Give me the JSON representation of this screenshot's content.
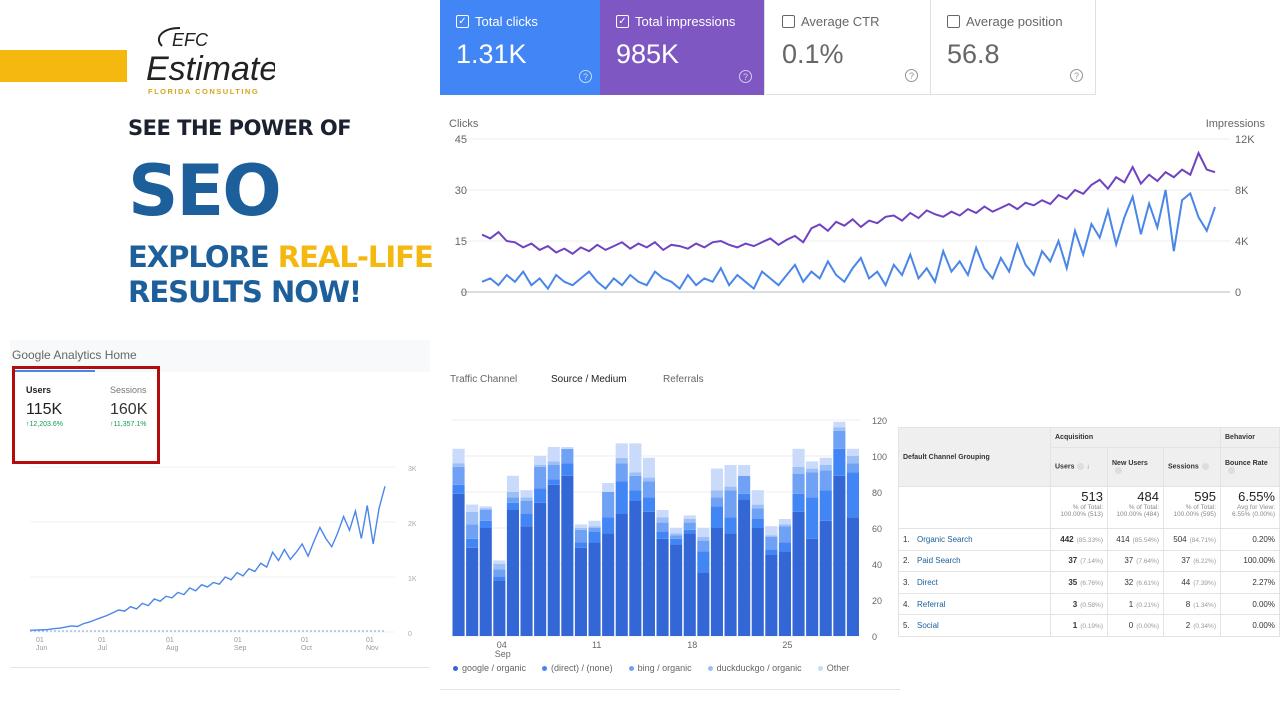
{
  "brand": {
    "logo_initials": "EFC",
    "logo_name": "Estimate",
    "logo_tagline": "FLORIDA CONSULTING",
    "accent_yellow": "#f5b80f",
    "accent_blue": "#1d5f9b"
  },
  "headline": {
    "line1": "SEE THE POWER OF",
    "line2": "SEO",
    "line3a": "EXPLORE ",
    "line3b": "REAL-LIFE",
    "line4": "RESULTS NOW!"
  },
  "search_console": {
    "cards": [
      {
        "label": "Total clicks",
        "value": "1.31K",
        "checked": true,
        "color": "#4285f4"
      },
      {
        "label": "Total impressions",
        "value": "985K",
        "checked": true,
        "color": "#7e57c2"
      },
      {
        "label": "Average CTR",
        "value": "0.1%",
        "checked": false
      },
      {
        "label": "Average position",
        "value": "56.8",
        "checked": false
      }
    ]
  },
  "ga_home": {
    "title": "Google Analytics Home",
    "metrics": [
      {
        "label": "Users",
        "value": "115K",
        "change": "12,203.6%"
      },
      {
        "label": "Sessions",
        "value": "160K",
        "change": "11,357.1%"
      }
    ]
  },
  "source_tabs": [
    "Traffic Channel",
    "Source / Medium",
    "Referrals"
  ],
  "active_source_tab": "Source / Medium",
  "chart_data": [
    {
      "type": "line",
      "ylabel_left": "Clicks",
      "ylabel_right": "Impressions",
      "y_left_ticks": [
        "45",
        "30",
        "15",
        "0"
      ],
      "y_right_ticks": [
        "12K",
        "8K",
        "4K",
        "0"
      ],
      "ylim_left": [
        0,
        45
      ],
      "ylim_right": [
        0,
        12000
      ],
      "series": [
        {
          "name": "Clicks",
          "color": "#4a86e8",
          "values": [
            3,
            4,
            2,
            5,
            3,
            6,
            2,
            4,
            1,
            5,
            3,
            2,
            4,
            6,
            3,
            1,
            4,
            2,
            5,
            3,
            2,
            6,
            4,
            3,
            1,
            5,
            2,
            4,
            3,
            7,
            2,
            5,
            3,
            1,
            6,
            4,
            2,
            5,
            8,
            3,
            6,
            4,
            9,
            5,
            3,
            7,
            10,
            4,
            6,
            2,
            8,
            5,
            11,
            4,
            7,
            3,
            12,
            6,
            9,
            5,
            13,
            7,
            4,
            10,
            6,
            14,
            8,
            5,
            12,
            9,
            15,
            7,
            18,
            11,
            20,
            16,
            24,
            14,
            22,
            28,
            17,
            26,
            19,
            30,
            12,
            27,
            29,
            22,
            18,
            25
          ]
        },
        {
          "name": "Impressions",
          "color": "#6f42c1",
          "values": [
            4500,
            4200,
            4700,
            4000,
            3900,
            3500,
            3800,
            3300,
            3600,
            3100,
            3400,
            3000,
            3500,
            3200,
            3700,
            3300,
            3600,
            3900,
            3400,
            3800,
            3500,
            3900,
            3300,
            3700,
            3600,
            3400,
            3800,
            3500,
            3900,
            4000,
            3700,
            3500,
            3800,
            3600,
            3900,
            4200,
            3700,
            4100,
            4400,
            3900,
            5000,
            5300,
            4800,
            5500,
            5200,
            5700,
            5100,
            5600,
            5400,
            5900,
            6000,
            5600,
            6200,
            5800,
            6400,
            6100,
            5900,
            6300,
            6000,
            6500,
            6200,
            6700,
            6300,
            6600,
            6900,
            6500,
            7000,
            6800,
            7200,
            6900,
            7600,
            7300,
            8000,
            7700,
            8400,
            8800,
            8100,
            9000,
            8600,
            9800,
            8500,
            9200,
            8700,
            9400,
            9000,
            9600,
            9200,
            10900,
            9600,
            9400
          ]
        }
      ]
    },
    {
      "type": "line",
      "title": "Users",
      "y_ticks": [
        "3K",
        "2K",
        "1K",
        "0"
      ],
      "ylim": [
        0,
        3000
      ],
      "x_ticks": [
        [
          "01",
          "Jun"
        ],
        [
          "01",
          "Jul"
        ],
        [
          "01",
          "Aug"
        ],
        [
          "01",
          "Sep"
        ],
        [
          "01",
          "Oct"
        ],
        [
          "01",
          "Nov"
        ]
      ],
      "series": [
        {
          "name": "Users",
          "color": "#4a86e8",
          "values": [
            30,
            35,
            40,
            45,
            60,
            70,
            90,
            110,
            100,
            150,
            180,
            220,
            260,
            300,
            350,
            400,
            380,
            460,
            420,
            520,
            480,
            600,
            560,
            650,
            620,
            720,
            680,
            800,
            750,
            860,
            820,
            900,
            870,
            1000,
            950,
            1080,
            1020,
            1150,
            1100,
            1250,
            1180,
            1450,
            1300,
            1500,
            1320,
            1450,
            1600,
            1380,
            1650,
            1900,
            1700,
            1550,
            1800,
            2100,
            1850,
            2200,
            1700,
            2300,
            1600,
            2250,
            2650
          ]
        }
      ]
    },
    {
      "type": "bar",
      "stacked": true,
      "y_ticks": [
        "120",
        "100",
        "80",
        "60",
        "40",
        "20",
        "0"
      ],
      "ylim": [
        0,
        120
      ],
      "x_ticks": [
        [
          "04",
          "Sep"
        ],
        [
          "11",
          ""
        ],
        [
          "18",
          ""
        ],
        [
          "25",
          ""
        ]
      ],
      "series": [
        {
          "name": "google / organic",
          "color": "#3367d6",
          "values": [
            79,
            49,
            60,
            31,
            70,
            61,
            74,
            84,
            89,
            49,
            52,
            57,
            68,
            75,
            69,
            54,
            51,
            57,
            35,
            60,
            57,
            76,
            60,
            45,
            47,
            69,
            54,
            64,
            89,
            66
          ]
        },
        {
          "name": "(direct) / (none)",
          "color": "#4285f4",
          "values": [
            5,
            5,
            4,
            2,
            4,
            7,
            8,
            3,
            7,
            3,
            6,
            9,
            18,
            6,
            8,
            4,
            3,
            2,
            12,
            12,
            9,
            3,
            5,
            3,
            5,
            10,
            23,
            17,
            15,
            25
          ]
        },
        {
          "name": "bing / organic",
          "color": "#6fa1f5",
          "values": [
            10,
            8,
            6,
            4,
            3,
            7,
            12,
            8,
            8,
            7,
            2,
            14,
            10,
            8,
            9,
            5,
            2,
            4,
            6,
            5,
            15,
            10,
            6,
            7,
            9,
            11,
            14,
            11,
            10,
            5
          ]
        },
        {
          "name": "duckduckgo / organic",
          "color": "#9dbff7",
          "values": [
            2,
            7,
            1,
            3,
            3,
            2,
            1,
            2,
            0,
            1,
            1,
            0,
            3,
            2,
            2,
            3,
            1,
            2,
            2,
            4,
            2,
            0,
            2,
            1,
            1,
            4,
            2,
            3,
            2,
            4
          ]
        },
        {
          "name": "Other",
          "color": "#c9dafb",
          "values": [
            8,
            4,
            1,
            2,
            9,
            4,
            5,
            8,
            1,
            2,
            3,
            5,
            8,
            16,
            11,
            4,
            3,
            2,
            5,
            12,
            12,
            6,
            8,
            5,
            3,
            10,
            4,
            4,
            3,
            4
          ]
        }
      ]
    }
  ],
  "channel_table": {
    "group_header": "Default Channel Grouping",
    "acquisition": "Acquisition",
    "behavior": "Behavior",
    "columns": [
      "Users",
      "New Users",
      "Sessions",
      "Bounce Rate"
    ],
    "totals": [
      {
        "value": "513",
        "sub1": "% of Total:",
        "sub2": "100.00% (513)"
      },
      {
        "value": "484",
        "sub1": "% of Total:",
        "sub2": "100.00% (484)"
      },
      {
        "value": "595",
        "sub1": "% of Total:",
        "sub2": "100.00% (595)"
      },
      {
        "value": "6.55%",
        "sub1": "Avg for View:",
        "sub2": "6.55% (0.00%)"
      }
    ],
    "rows": [
      {
        "idx": "1.",
        "name": "Organic Search",
        "users": "442",
        "users_pct": "(85.33%)",
        "new": "414",
        "new_pct": "(85.54%)",
        "sessions": "504",
        "sessions_pct": "(84.71%)",
        "bounce": "0.20%"
      },
      {
        "idx": "2.",
        "name": "Paid Search",
        "users": "37",
        "users_pct": "(7.14%)",
        "new": "37",
        "new_pct": "(7.64%)",
        "sessions": "37",
        "sessions_pct": "(6.22%)",
        "bounce": "100.00%"
      },
      {
        "idx": "3.",
        "name": "Direct",
        "users": "35",
        "users_pct": "(6.76%)",
        "new": "32",
        "new_pct": "(6.61%)",
        "sessions": "44",
        "sessions_pct": "(7.39%)",
        "bounce": "2.27%"
      },
      {
        "idx": "4.",
        "name": "Referral",
        "users": "3",
        "users_pct": "(0.58%)",
        "new": "1",
        "new_pct": "(0.21%)",
        "sessions": "8",
        "sessions_pct": "(1.34%)",
        "bounce": "0.00%"
      },
      {
        "idx": "5.",
        "name": "Social",
        "users": "1",
        "users_pct": "(0.19%)",
        "new": "0",
        "new_pct": "(0.00%)",
        "sessions": "2",
        "sessions_pct": "(0.34%)",
        "bounce": "0.00%"
      }
    ]
  }
}
